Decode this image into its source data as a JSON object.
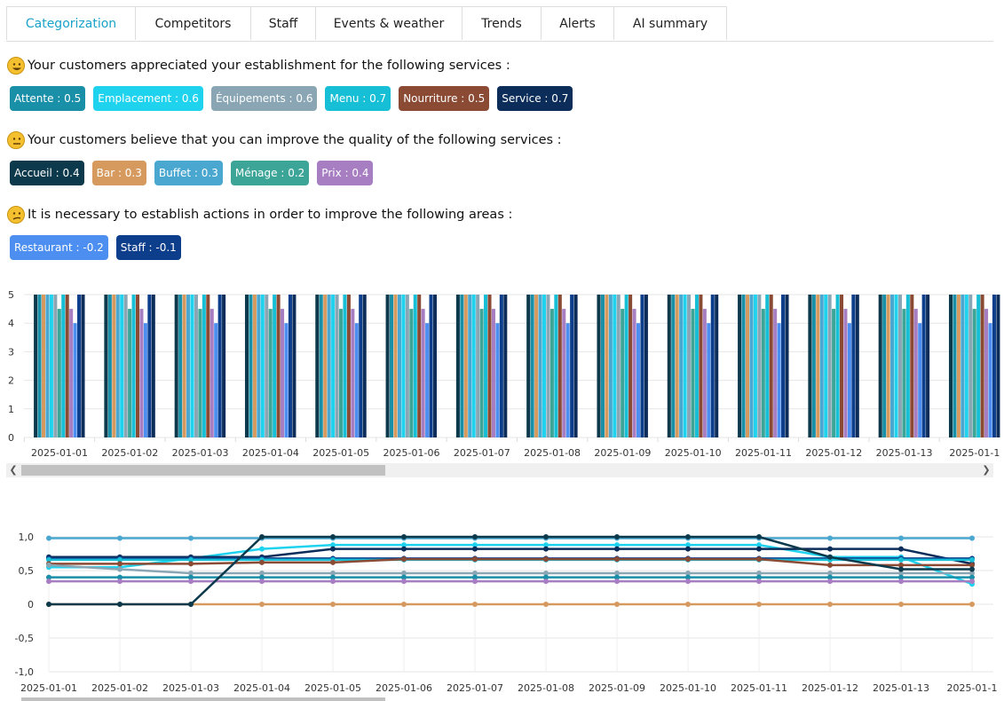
{
  "tabs": [
    {
      "label": "Categorization",
      "active": true
    },
    {
      "label": "Competitors"
    },
    {
      "label": "Staff"
    },
    {
      "label": "Events & weather"
    },
    {
      "label": "Trends"
    },
    {
      "label": "Alerts"
    },
    {
      "label": "AI summary"
    }
  ],
  "sections": {
    "appreciated": {
      "title": "Your customers appreciated your establishment for the following services :",
      "emoji": "grinning-face-icon",
      "tags": [
        {
          "label": "Attente : 0.5",
          "color": "#1a8fa8"
        },
        {
          "label": "Emplacement : 0.6",
          "color": "#1fd3ef"
        },
        {
          "label": "Équipements : 0.6",
          "color": "#8aa6b4"
        },
        {
          "label": "Menu : 0.7",
          "color": "#16bfd6"
        },
        {
          "label": "Nourriture : 0.5",
          "color": "#8b4a33"
        },
        {
          "label": "Service : 0.7",
          "color": "#0c2d5a"
        }
      ]
    },
    "improve": {
      "title": "Your customers believe that you can improve the quality of the following services :",
      "emoji": "neutral-face-icon",
      "tags": [
        {
          "label": "Accueil : 0.4",
          "color": "#0c3a4c"
        },
        {
          "label": "Bar : 0.3",
          "color": "#d79a5e"
        },
        {
          "label": "Buffet : 0.3",
          "color": "#4aa7d0"
        },
        {
          "label": "Ménage : 0.2",
          "color": "#3ca598"
        },
        {
          "label": "Prix : 0.4",
          "color": "#a67ec1"
        }
      ]
    },
    "actions": {
      "title": "It is necessary to establish actions in order to improve the following areas :",
      "emoji": "confused-face-icon",
      "tags": [
        {
          "label": "Restaurant : -0.2",
          "color": "#4d8ff0"
        },
        {
          "label": "Staff : -0.1",
          "color": "#0c3e8c"
        }
      ]
    }
  },
  "chart_data": [
    {
      "type": "bar",
      "categories": [
        "2025-01-01",
        "2025-01-02",
        "2025-01-03",
        "2025-01-04",
        "2025-01-05",
        "2025-01-06",
        "2025-01-07",
        "2025-01-08",
        "2025-01-09",
        "2025-01-10",
        "2025-01-11",
        "2025-01-12",
        "2025-01-13",
        "2025-01-1"
      ],
      "ylim": [
        0,
        5
      ],
      "yticks": [
        "0",
        "1",
        "2",
        "3",
        "4",
        "5"
      ],
      "grid": true,
      "series": [
        {
          "color": "#0c3a4c",
          "value": 5
        },
        {
          "color": "#1a8fa8",
          "value": 5
        },
        {
          "color": "#d79a5e",
          "value": 5
        },
        {
          "color": "#4aa7d0",
          "value": 5
        },
        {
          "color": "#1fd3ef",
          "value": 5
        },
        {
          "color": "#8aa6b4",
          "value": 5
        },
        {
          "color": "#3ca598",
          "value": 4.5
        },
        {
          "color": "#16bfd6",
          "value": 5
        },
        {
          "color": "#8b4a33",
          "value": 5
        },
        {
          "color": "#a67ec1",
          "value": 4.5
        },
        {
          "color": "#4d8ff0",
          "value": 4
        },
        {
          "color": "#0c3e8c",
          "value": 5
        },
        {
          "color": "#0c2d5a",
          "value": 5
        }
      ]
    },
    {
      "type": "line",
      "x": [
        "2025-01-01",
        "2025-01-02",
        "2025-01-03",
        "2025-01-04",
        "2025-01-05",
        "2025-01-06",
        "2025-01-07",
        "2025-01-08",
        "2025-01-09",
        "2025-01-10",
        "2025-01-11",
        "2025-01-12",
        "2025-01-13",
        "2025-01-1"
      ],
      "ylim": [
        -1,
        1
      ],
      "yticks": [
        "-1,0",
        "-0,5",
        "0",
        "0,5",
        "1,0"
      ],
      "grid": true,
      "series": [
        {
          "color": "#4aa7d0",
          "values": [
            0.98,
            0.98,
            0.98,
            0.98,
            0.98,
            0.98,
            0.98,
            0.98,
            0.98,
            0.98,
            0.98,
            0.98,
            0.98,
            0.98
          ]
        },
        {
          "color": "#1fd3ef",
          "values": [
            0.55,
            0.55,
            0.68,
            0.82,
            0.88,
            0.88,
            0.88,
            0.88,
            0.88,
            0.88,
            0.88,
            0.7,
            0.7,
            0.3
          ]
        },
        {
          "color": "#0c2d5a",
          "values": [
            0.7,
            0.7,
            0.7,
            0.7,
            0.82,
            0.82,
            0.82,
            0.82,
            0.82,
            0.82,
            0.82,
            0.82,
            0.82,
            0.6
          ]
        },
        {
          "color": "#0c3e8c",
          "values": [
            0.68,
            0.68,
            0.68,
            0.68,
            0.68,
            0.68,
            0.68,
            0.68,
            0.68,
            0.68,
            0.68,
            0.68,
            0.68,
            0.68
          ]
        },
        {
          "color": "#16bfd6",
          "values": [
            0.66,
            0.66,
            0.66,
            0.66,
            0.66,
            0.66,
            0.66,
            0.66,
            0.66,
            0.66,
            0.66,
            0.66,
            0.66,
            0.66
          ]
        },
        {
          "color": "#8b4a33",
          "values": [
            0.6,
            0.6,
            0.6,
            0.62,
            0.62,
            0.67,
            0.67,
            0.67,
            0.67,
            0.67,
            0.67,
            0.58,
            0.58,
            0.58
          ]
        },
        {
          "color": "#8aa6b4",
          "values": [
            0.58,
            0.52,
            0.46,
            0.46,
            0.46,
            0.46,
            0.46,
            0.46,
            0.46,
            0.46,
            0.46,
            0.46,
            0.46,
            0.46
          ]
        },
        {
          "color": "#1a8fa8",
          "values": [
            0.4,
            0.4,
            0.4,
            0.4,
            0.4,
            0.4,
            0.4,
            0.4,
            0.4,
            0.4,
            0.4,
            0.4,
            0.4,
            0.4
          ]
        },
        {
          "color": "#a67ec1",
          "values": [
            0.34,
            0.34,
            0.34,
            0.34,
            0.34,
            0.34,
            0.34,
            0.34,
            0.34,
            0.34,
            0.34,
            0.34,
            0.34,
            0.34
          ]
        },
        {
          "color": "#d79a5e",
          "values": [
            0,
            0,
            0,
            0,
            0,
            0,
            0,
            0,
            0,
            0,
            0,
            0,
            0,
            0
          ]
        },
        {
          "color": "#0c3a4c",
          "values": [
            0,
            0,
            0,
            1,
            1,
            1,
            1,
            1,
            1,
            1,
            1,
            0.7,
            0.52,
            0.52
          ]
        }
      ]
    }
  ]
}
